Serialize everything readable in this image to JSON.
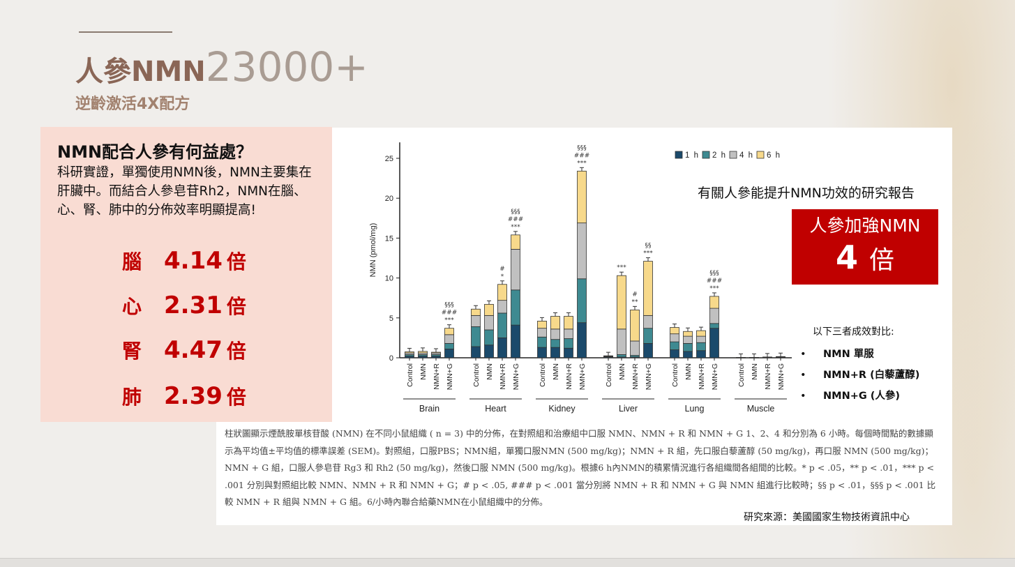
{
  "header": {
    "title_bold": "人參NMN",
    "title_number": "23000+",
    "subtitle": "逆齡激活4X配方"
  },
  "benefits": {
    "heading": "NMN配合人參有何益處？",
    "body": "科研實證，單獨使用NMN後，NMN主要集在肝臟中。而結合人參皂苷Rh2，NMN在腦、心、腎、肺中的分佈效率明顯提高!",
    "items": [
      {
        "organ": "腦",
        "value": "4.14",
        "unit": "倍"
      },
      {
        "organ": "心",
        "value": "2.31",
        "unit": "倍"
      },
      {
        "organ": "腎",
        "value": "4.47",
        "unit": "倍"
      },
      {
        "organ": "肺",
        "value": "2.39",
        "unit": "倍"
      }
    ]
  },
  "report": {
    "title": "有關人參能提升NMN功效的研究報告",
    "box_line1": "人參加強NMN",
    "box_number": "4",
    "box_unit": "倍",
    "compare_title": "以下三者成效對比:",
    "bullet": "•",
    "compare_items": [
      "NMN 單服",
      "NMN+R (白藜蘆醇)",
      "NMN+G (人參)"
    ]
  },
  "caption": "柱狀圖顯示煙酰胺單核苷酸 (NMN) 在不同小鼠組織 ( n = 3) 中的分佈，在對照組和治療組中口服 NMN、NMN + R 和 NMN + G 1、2、4 和分別為 6 小時。每個時間點的數據顯示為平均值±平均值的標準誤差 (SEM)。對照組，口服PBS；NMN組，單獨口服NMN (500 mg/kg)；NMN + R 組，先口服白藜蘆醇 (50 mg/kg)，再口服 NMN (500 mg/kg)；NMN + G 組，口服人參皂苷 Rg3 和 Rh2 (50 mg/kg)，然後口服 NMN (500 mg/kg)。根據6 h內NMN的積累情況進行各組織間各組間的比較。* p < .05，** p < .01，*** p < .001 分別與對照組比較 NMN、NMN + R 和 NMN + G；# p < .05, ### p < .001 當分別將 NMN + R 和 NMN + G 與 NMN 組進行比較時；§§ p < .01，§§§ p < .001 比較 NMN + R 組與 NMN + G 組。6/小時內聯合給藥NMN在小鼠組織中的分佈。",
  "source": "研究來源：美國國家生物技術資訊中心",
  "chart_data": {
    "type": "bar",
    "stacked": true,
    "ylabel": "NMN (pmol/mg)",
    "ylim": [
      0,
      27
    ],
    "yticks": [
      0,
      5,
      10,
      15,
      20,
      25
    ],
    "groups": [
      "Brain",
      "Heart",
      "Kidney",
      "Liver",
      "Lung",
      "Muscle"
    ],
    "conditions": [
      "Control",
      "NMN",
      "NMN+R",
      "NMN+G"
    ],
    "legend": {
      "position": "top-right",
      "entries": [
        "1 h",
        "2 h",
        "4 h",
        "6 h"
      ]
    },
    "colors": [
      "#1b4a6b",
      "#3e8a91",
      "#c0c0c0",
      "#f7d98b"
    ],
    "series": [
      {
        "name": "1 h",
        "values": [
          [
            0.2,
            0.2,
            0.2,
            1.1
          ],
          [
            1.4,
            1.6,
            2.5,
            4.1
          ],
          [
            1.3,
            1.3,
            1.2,
            4.4
          ],
          [
            0.1,
            0.1,
            0.1,
            1.8
          ],
          [
            1.0,
            0.8,
            0.9,
            3.7
          ],
          [
            0.02,
            0.02,
            0.03,
            0.05
          ]
        ]
      },
      {
        "name": "2 h",
        "values": [
          [
            0.2,
            0.2,
            0.2,
            0.7
          ],
          [
            2.5,
            1.9,
            3.1,
            4.4
          ],
          [
            1.3,
            1.0,
            1.2,
            5.5
          ],
          [
            0.05,
            0.3,
            0.2,
            1.9
          ],
          [
            1.0,
            1.0,
            1.0,
            0.6
          ],
          [
            0.01,
            0.01,
            0.02,
            0.03
          ]
        ]
      },
      {
        "name": "4 h",
        "values": [
          [
            0.2,
            0.2,
            0.2,
            1.1
          ],
          [
            1.4,
            1.8,
            1.6,
            5.1
          ],
          [
            1.1,
            1.3,
            1.2,
            7.0
          ],
          [
            0.05,
            3.2,
            1.8,
            1.6
          ],
          [
            1.0,
            0.9,
            0.8,
            1.9
          ],
          [
            0.01,
            0.01,
            0.02,
            0.03
          ]
        ]
      },
      {
        "name": "6 h",
        "values": [
          [
            0.15,
            0.2,
            0.1,
            0.8
          ],
          [
            0.8,
            1.4,
            2.0,
            1.8
          ],
          [
            0.9,
            1.6,
            1.6,
            6.5
          ],
          [
            0.05,
            6.7,
            3.9,
            6.8
          ],
          [
            0.8,
            0.6,
            0.7,
            1.5
          ],
          [
            0.01,
            0.01,
            0.03,
            0.04
          ]
        ]
      }
    ],
    "annotations": [
      {
        "group": "Brain",
        "condition": "NMN+G",
        "text": [
          "§§§",
          "###",
          "***"
        ]
      },
      {
        "group": "Heart",
        "condition": "NMN+R",
        "text": [
          "#",
          "*"
        ]
      },
      {
        "group": "Heart",
        "condition": "NMN+G",
        "text": [
          "§§§",
          "###",
          "***"
        ]
      },
      {
        "group": "Kidney",
        "condition": "NMN+G",
        "text": [
          "§§§",
          "###",
          "***"
        ]
      },
      {
        "group": "Liver",
        "condition": "NMN",
        "text": [
          "***"
        ]
      },
      {
        "group": "Liver",
        "condition": "NMN+R",
        "text": [
          "#",
          "**"
        ]
      },
      {
        "group": "Liver",
        "condition": "NMN+G",
        "text": [
          "§§",
          "***"
        ]
      },
      {
        "group": "Lung",
        "condition": "NMN+G",
        "text": [
          "§§§",
          "###",
          "***"
        ]
      }
    ]
  }
}
